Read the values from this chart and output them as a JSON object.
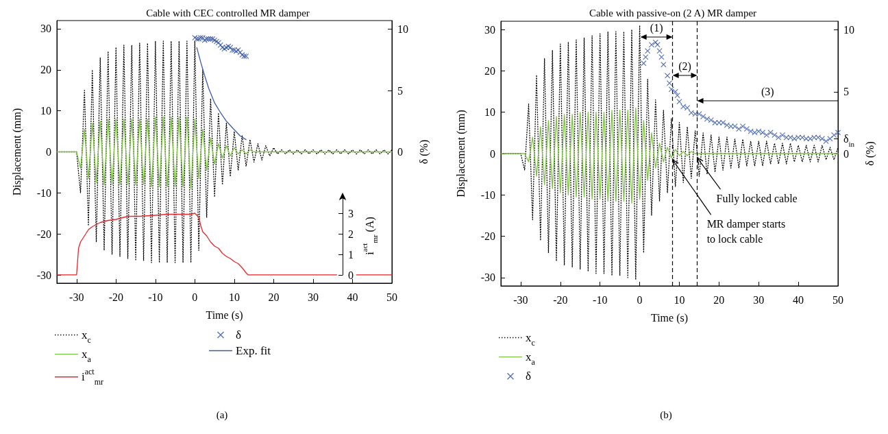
{
  "chart_data": [
    {
      "type": "line",
      "title": "Cable with CEC controlled MR damper",
      "xlabel": "Time (s)",
      "ylabel": "Displacement (mm)",
      "y2label": "δ (%)",
      "y3label": "i$^{act}$$_{mr}$ (A)",
      "xlim": [
        -35,
        50
      ],
      "xticks": [
        -30,
        -20,
        -10,
        0,
        10,
        20,
        30,
        40,
        50
      ],
      "ylim": [
        -32,
        32
      ],
      "yticks": [
        -30,
        -20,
        -10,
        0,
        10,
        20,
        30
      ],
      "y2lim": [
        -10.7,
        10.7
      ],
      "y2ticks": [
        0,
        5,
        10
      ],
      "y3lim": [
        0,
        3.8
      ],
      "y3ticks": [
        0,
        1,
        2,
        3
      ],
      "x": [
        -35,
        -34,
        -33,
        -32,
        -31,
        -30,
        -29,
        -28,
        -27,
        -26,
        -25,
        -24,
        -23,
        -22,
        -21,
        -20,
        -19,
        -18,
        -17,
        -16,
        -15,
        -14,
        -13,
        -12,
        -11,
        -10,
        -9,
        -8,
        -7,
        -6,
        -5,
        -4,
        -3,
        -2,
        -1,
        0,
        1,
        2,
        3,
        4,
        5,
        6,
        7,
        8,
        9,
        10,
        11,
        12,
        13,
        14,
        15,
        16,
        17,
        18,
        19,
        20,
        21,
        22,
        23,
        24,
        25,
        26,
        27,
        28,
        29,
        30,
        31,
        32,
        33,
        34,
        35,
        36,
        37,
        38,
        39,
        40,
        41,
        42,
        43,
        44,
        45,
        46,
        47,
        48,
        49,
        50
      ],
      "legend": "bottom left",
      "annotations": [
        "(a)"
      ],
      "series": [
        {
          "name": "x$_{c}$",
          "type": "line",
          "line_style": "dotted",
          "color": "#000000",
          "values": [
            0,
            0,
            0,
            0,
            0,
            0,
            -10,
            15,
            -18,
            20,
            -22,
            23,
            -24,
            24.5,
            -25,
            25.5,
            -25.5,
            26,
            -26,
            26,
            -26.5,
            26.5,
            -26.5,
            26.5,
            -27,
            27,
            -27,
            27,
            -27,
            27,
            -27,
            27,
            -27,
            27,
            -27,
            27,
            -24,
            20,
            -16,
            13,
            -11,
            9.5,
            -8,
            7,
            -6,
            5,
            -4.5,
            4,
            -3.5,
            3,
            -2.5,
            2,
            -2,
            1.5,
            -1,
            1,
            -0.5,
            0.5,
            -0.5,
            0.5,
            -0.5,
            0.5,
            -0.5,
            0.5,
            -0.5,
            0.5,
            -0.5,
            0.5,
            -0.5,
            0.5,
            -0.5,
            0.5,
            -0.5,
            0.5,
            -0.5,
            0.5,
            -0.5,
            0.5,
            -0.5,
            0.5,
            -0.5,
            0.5,
            -0.5,
            0.5,
            -0.5,
            0.5
          ]
        },
        {
          "name": "x$_{a}$",
          "type": "line",
          "line_style": "solid",
          "color": "#7dc242",
          "values": [
            0,
            0,
            0,
            0,
            0,
            0,
            -4,
            5.5,
            -6.5,
            7,
            -7.5,
            7.5,
            -8,
            8,
            -8,
            8,
            -8,
            8,
            -8,
            8,
            -8,
            8,
            -8,
            8,
            -8.5,
            8.5,
            -8.5,
            8.5,
            -8.5,
            8.5,
            -8.5,
            8.5,
            -8.5,
            8.5,
            -9,
            8,
            -6.5,
            5.5,
            -4.5,
            3.5,
            -3,
            2,
            -1.5,
            1.5,
            -1,
            1,
            -0.5,
            0.5,
            -0.5,
            0.5,
            0,
            0,
            0,
            0,
            0,
            0,
            0,
            0,
            0,
            0,
            0,
            0,
            0,
            0,
            0,
            0,
            0,
            0,
            0,
            0,
            0,
            0,
            0,
            0,
            0,
            0,
            0,
            0,
            0,
            0,
            0,
            0,
            0,
            0,
            0,
            0
          ]
        },
        {
          "name": "i$^{act}$$_{mr}$",
          "type": "line",
          "axis": "y3",
          "line_style": "solid",
          "color": "#e8262a",
          "x": [
            -35,
            -30,
            -29.5,
            -29,
            -28,
            -27,
            -26,
            -24,
            -22,
            -20,
            -17,
            -14,
            -10,
            -7,
            -4,
            -1,
            0,
            1,
            1.5,
            2,
            3,
            4,
            5,
            6,
            7,
            8,
            9,
            10,
            11,
            12,
            13,
            13.5,
            36,
            37,
            41,
            50
          ],
          "values": [
            0,
            0,
            1.3,
            1.6,
            1.9,
            2.2,
            2.35,
            2.55,
            2.65,
            2.7,
            2.85,
            2.85,
            2.9,
            2.95,
            2.95,
            2.95,
            3,
            2.8,
            2.4,
            2.1,
            1.9,
            1.6,
            1.4,
            1.3,
            1.05,
            0.9,
            0.8,
            0.65,
            0.55,
            0.35,
            0.1,
            0,
            0,
            null,
            0,
            0
          ]
        },
        {
          "name": "δ",
          "type": "scatter",
          "axis": "y2",
          "marker": "cross",
          "color": "#2e4fa0",
          "x": [
            0,
            0.5,
            1,
            1.5,
            2,
            2.5,
            3,
            3.5,
            4,
            4.5,
            5,
            5.5,
            6,
            6.5,
            7,
            7.5,
            8,
            8.5,
            9,
            9.5,
            10,
            10.5,
            11,
            11.5,
            12,
            12.5,
            13
          ],
          "values": [
            9.3,
            9.2,
            9.2,
            9.3,
            9.3,
            9.1,
            9.2,
            9.2,
            9.2,
            9.2,
            9.1,
            9.0,
            8.9,
            8.7,
            8.5,
            8.4,
            8.5,
            8.6,
            8.5,
            8.3,
            8.3,
            8.2,
            8.3,
            8.1,
            7.9,
            7.8,
            7.8
          ]
        },
        {
          "name": "Exp. fit",
          "type": "line",
          "axis": "y2",
          "line_style": "solid",
          "color": "#3b5ba9",
          "x": [
            0.5,
            1.5,
            2.5,
            3.5,
            5,
            6.5,
            8,
            10,
            11.5,
            13
          ],
          "values": [
            8.5,
            7.3,
            6.2,
            5.2,
            4.0,
            3.2,
            2.5,
            1.8,
            1.3,
            1.0
          ]
        }
      ]
    },
    {
      "type": "line",
      "title": "Cable with passive-on (2 A) MR damper",
      "xlabel": "Time (s)",
      "ylabel": "Displacement (mm)",
      "y2label": "δ (%)",
      "xlim": [
        -35,
        50
      ],
      "xticks": [
        -30,
        -20,
        -10,
        0,
        10,
        20,
        30,
        40,
        50
      ],
      "ylim": [
        -32,
        32
      ],
      "yticks": [
        -30,
        -20,
        -10,
        0,
        10,
        20,
        30
      ],
      "y2lim": [
        -10.7,
        10.7
      ],
      "y2ticks": [
        0,
        {
          "value": 1.2,
          "label": "δ$_{in}$"
        },
        5,
        10
      ],
      "x": [
        -35,
        -34,
        -33,
        -32,
        -31,
        -30,
        -29,
        -28,
        -27,
        -26,
        -25,
        -24,
        -23,
        -22,
        -21,
        -20,
        -19,
        -18,
        -17,
        -16,
        -15,
        -14,
        -13,
        -12,
        -11,
        -10,
        -9,
        -8,
        -7,
        -6,
        -5,
        -4,
        -3,
        -2,
        -1,
        0,
        1,
        2,
        3,
        4,
        5,
        6,
        7,
        8,
        9,
        10,
        11,
        12,
        13,
        14,
        15,
        16,
        17,
        18,
        19,
        20,
        21,
        22,
        23,
        24,
        25,
        26,
        27,
        28,
        29,
        30,
        31,
        32,
        33,
        34,
        35,
        36,
        37,
        38,
        39,
        40,
        41,
        42,
        43,
        44,
        45,
        46,
        47,
        48,
        49,
        50
      ],
      "legend": "bottom left",
      "ref_lines": [
        {
          "axis": "x",
          "value": 8.3,
          "line_style": "dashed",
          "color": "#000000"
        },
        {
          "axis": "x",
          "value": 14.5,
          "line_style": "dashed",
          "color": "#000000"
        }
      ],
      "annotations": [
        "(1)",
        "(2)",
        "(3)",
        {
          "text": "Fully locked cable",
          "x": 14.5,
          "y": -1
        },
        {
          "text": "MR damper starts to lock cable",
          "x": 8.3,
          "y": -1.5
        },
        "(b)"
      ],
      "series": [
        {
          "name": "x$_{c}$",
          "type": "line",
          "line_style": "dotted",
          "color": "#000000",
          "values": [
            0,
            0,
            0,
            0,
            0,
            0,
            -4,
            12,
            -16,
            19,
            -21,
            23,
            -24,
            25,
            -26,
            26.5,
            -27,
            27,
            -27.5,
            27.5,
            -28,
            28,
            -28.5,
            28.5,
            -29,
            29,
            -29,
            29.5,
            -29.5,
            29.5,
            -29.5,
            29.5,
            -30,
            30,
            -30.5,
            31,
            -24,
            18,
            -15,
            13,
            -11.5,
            10.5,
            -9.5,
            8.5,
            -8,
            7.5,
            -7,
            6.5,
            -6,
            5.5,
            -5.5,
            5,
            -5,
            4.5,
            -4.5,
            4,
            -4,
            4,
            -3.5,
            3.5,
            -3.5,
            3.5,
            -3,
            3,
            -3,
            3,
            -3,
            3,
            -2.5,
            2.5,
            -2.5,
            2.5,
            -2.5,
            2.5,
            -2,
            2,
            -2,
            2,
            -2,
            2,
            -2,
            2,
            -1.5,
            1.5,
            -1.5,
            1.5
          ]
        },
        {
          "name": "x$_{a}$",
          "type": "line",
          "line_style": "solid",
          "color": "#7dc242",
          "values": [
            0,
            0,
            0,
            0,
            0,
            0,
            0,
            -2,
            4,
            -5.5,
            6.5,
            -7.5,
            8,
            -8.5,
            9,
            -9.5,
            9.5,
            -10,
            9.5,
            -10.5,
            10,
            -10.5,
            10,
            -11,
            10,
            -11,
            10,
            -11.5,
            10.5,
            -11.5,
            10.5,
            -11.5,
            10.5,
            -12,
            11,
            -11,
            8,
            -6.5,
            5,
            -3.5,
            2.5,
            -2,
            1.5,
            -1,
            1,
            -0.5,
            0.5,
            -0.5,
            0.5,
            0,
            0,
            0,
            0,
            0,
            0,
            0,
            0,
            0,
            0,
            0,
            0,
            0,
            0,
            0,
            0,
            0,
            0,
            0,
            0,
            0,
            0,
            0,
            0,
            0,
            0,
            0,
            0,
            0,
            0,
            0,
            0,
            0,
            0,
            0,
            0,
            0
          ]
        },
        {
          "name": "δ",
          "type": "scatter",
          "axis": "y2",
          "marker": "cross",
          "color": "#2e4fa0",
          "x": [
            1,
            1.5,
            2,
            3,
            4,
            4.5,
            5,
            5.5,
            6,
            7,
            7.5,
            8,
            9,
            9.5,
            10,
            11,
            12,
            13,
            14,
            15,
            16,
            17,
            18,
            19,
            20,
            21,
            22,
            23,
            24,
            25,
            26,
            27,
            28,
            29,
            30,
            31,
            32,
            33,
            34,
            35,
            36,
            37,
            38,
            39,
            40,
            41,
            42,
            43,
            44,
            45,
            46,
            47,
            48,
            49,
            50
          ],
          "values": [
            7.3,
            7.8,
            8.3,
            8.8,
            9.0,
            8.8,
            8.3,
            7.8,
            7.2,
            6.3,
            5.7,
            5.2,
            5.0,
            4.7,
            4.2,
            3.8,
            3.7,
            3.3,
            3.2,
            3.2,
            3.0,
            2.8,
            2.7,
            2.5,
            2.5,
            2.5,
            2.3,
            2.2,
            2.2,
            2.0,
            2.2,
            2.0,
            1.8,
            1.7,
            1.8,
            1.7,
            1.5,
            1.7,
            1.5,
            1.3,
            1.5,
            1.3,
            1.3,
            1.2,
            1.3,
            1.3,
            1.2,
            1.2,
            1.3,
            1.3,
            1.2,
            1.0,
            1.2,
            1.5,
            1.7
          ]
        }
      ]
    }
  ]
}
